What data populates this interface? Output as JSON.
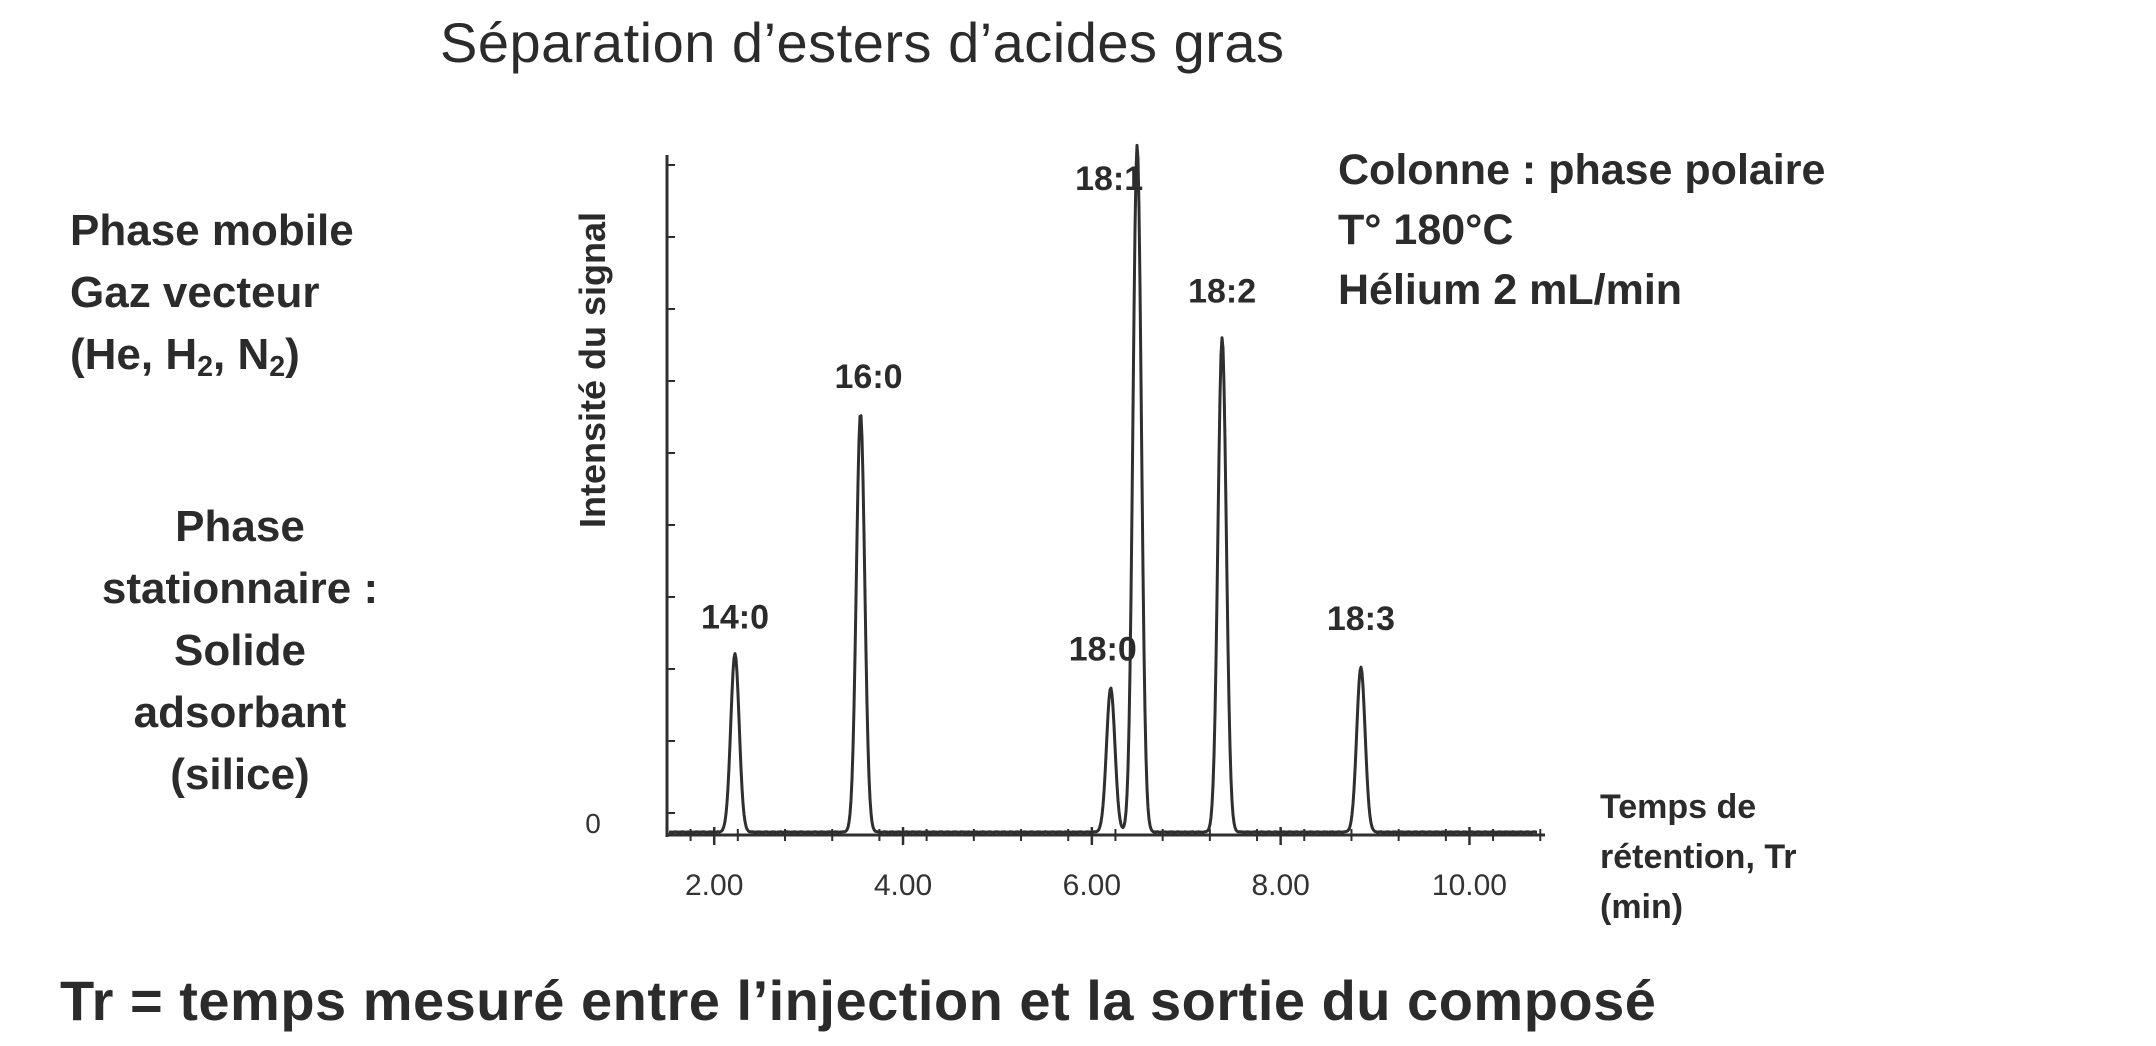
{
  "title": "Séparation d’esters d’acides gras",
  "mobile_phase": {
    "line1": "Phase mobile",
    "line2": "Gaz vecteur",
    "line3_prefix": "(He, H",
    "line3_sub1": "2",
    "line3_mid": ", N",
    "line3_sub2": "2",
    "line3_suffix": ")"
  },
  "stationary_phase": {
    "line1": "Phase",
    "line2": "stationnaire :",
    "line3": "Solide",
    "line4": "adsorbant",
    "line5": "(silice)"
  },
  "conditions": {
    "line1": "Colonne : phase polaire",
    "line2": "T° 180°C",
    "line3": "Hélium 2 mL/min"
  },
  "footer": "Tr = temps mesuré entre l’injection et la sortie du composé",
  "chart_data": {
    "type": "line",
    "ylabel": "Intensité du signal",
    "xlabel_lines": [
      "Temps de",
      "rétention, Tr",
      "(min)"
    ],
    "x_ticks": [
      "2.00",
      "4.00",
      "6.00",
      "8.00",
      "10.00"
    ],
    "x_tick_values": [
      2,
      4,
      6,
      8,
      10
    ],
    "y_tick_label": "0",
    "xlim": [
      1.5,
      10.8
    ],
    "ylim": [
      0,
      100
    ],
    "peaks": [
      {
        "label": "14:0",
        "rt": 2.22,
        "height": 26
      },
      {
        "label": "16:0",
        "rt": 3.55,
        "height": 61
      },
      {
        "label": "18:0",
        "rt": 6.2,
        "height": 21
      },
      {
        "label": "18:1",
        "rt": 6.48,
        "height": 100
      },
      {
        "label": "18:2",
        "rt": 7.38,
        "height": 72
      },
      {
        "label": "18:3",
        "rt": 8.85,
        "height": 24
      }
    ],
    "grid": false,
    "legend": "none",
    "line_color": "#2f2f2f"
  }
}
